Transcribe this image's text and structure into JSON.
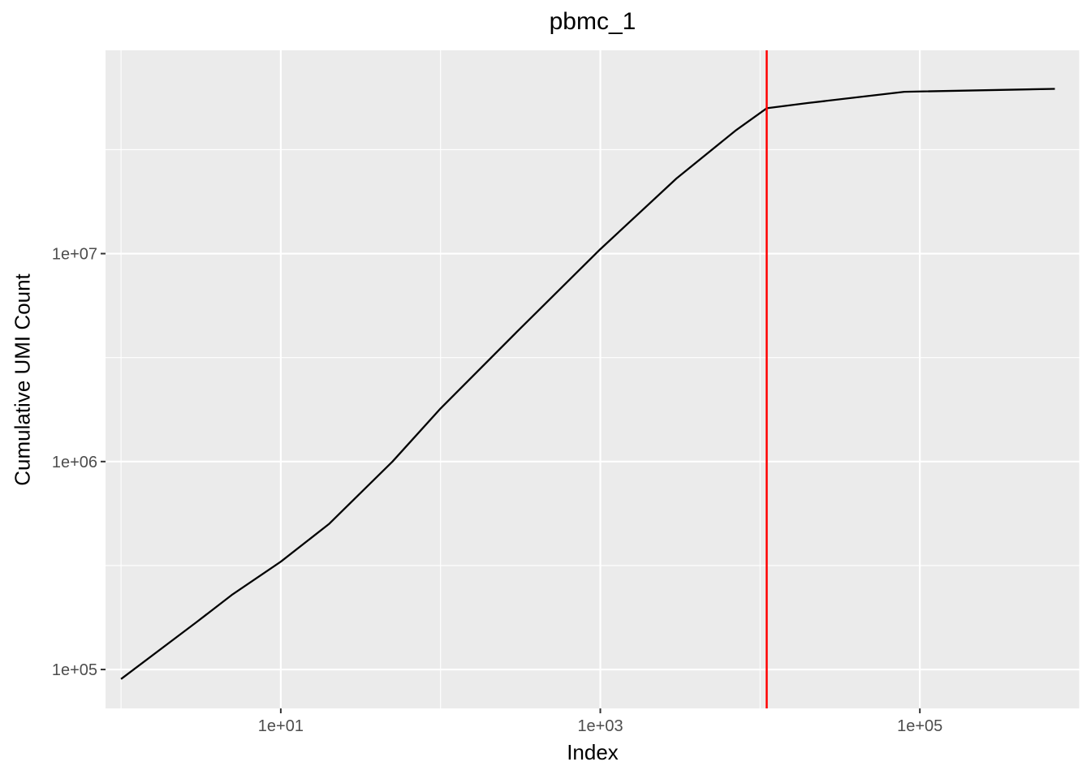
{
  "chart_data": {
    "type": "line",
    "title": "pbmc_1",
    "xlabel": "Index",
    "ylabel": "Cumulative UMI Count",
    "x_scale": "log10",
    "y_scale": "log10",
    "xlim": [
      0.8,
      1000000
    ],
    "ylim": [
      65000,
      95000000
    ],
    "x_ticks": [
      {
        "value": 10,
        "label": "1e+01"
      },
      {
        "value": 1000,
        "label": "1e+03"
      },
      {
        "value": 100000,
        "label": "1e+05"
      }
    ],
    "y_ticks": [
      {
        "value": 100000,
        "label": "1e+05"
      },
      {
        "value": 1000000,
        "label": "1e+06"
      },
      {
        "value": 10000000,
        "label": "1e+07"
      }
    ],
    "grid": true,
    "legend": "none",
    "series": [
      {
        "color": "#000000",
        "x": [
          1,
          3,
          5,
          10,
          20,
          50,
          100,
          300,
          1000,
          3000,
          7000,
          11000,
          20000,
          80000,
          700000
        ],
        "y": [
          90000,
          170000,
          230000,
          330000,
          500000,
          1000000,
          1800000,
          4200000,
          10500000,
          23000000,
          39000000,
          50000000,
          53000000,
          60000000,
          62000000
        ]
      }
    ],
    "vline": {
      "x": 11000,
      "color": "#ff0000"
    }
  }
}
